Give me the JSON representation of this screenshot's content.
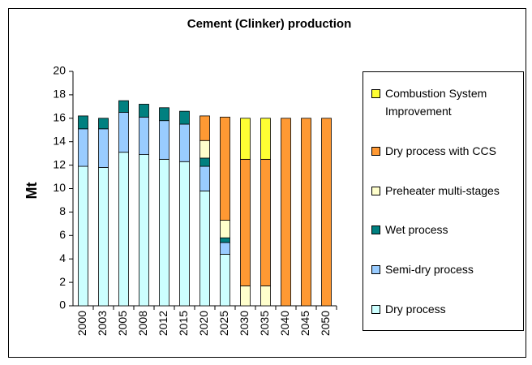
{
  "chart_data": {
    "type": "stacked_bar",
    "title": "Cement (Clinker) production",
    "y_label": "Mt",
    "categories": [
      "2000",
      "2003",
      "2005",
      "2008",
      "2012",
      "2015",
      "2020",
      "2025",
      "2030",
      "2035",
      "2040",
      "2045",
      "2050"
    ],
    "series": [
      {
        "name": "Dry process",
        "color": "#ccffff",
        "values": [
          11.9,
          11.8,
          13.1,
          12.9,
          12.5,
          12.3,
          9.8,
          4.4,
          0,
          0,
          0,
          0,
          0
        ]
      },
      {
        "name": "Semi-dry process",
        "color": "#99ccff",
        "values": [
          3.2,
          3.3,
          3.4,
          3.2,
          3.3,
          3.2,
          2.1,
          1.0,
          0,
          0,
          0,
          0,
          0
        ]
      },
      {
        "name": "Wet process",
        "color": "#008080",
        "values": [
          1.1,
          0.9,
          1.0,
          1.1,
          1.1,
          1.1,
          0.7,
          0.4,
          0,
          0,
          0,
          0,
          0
        ]
      },
      {
        "name": "Preheater multi-stages",
        "color": "#ffffcc",
        "values": [
          0,
          0,
          0,
          0,
          0,
          0,
          1.5,
          1.5,
          1.7,
          1.7,
          0,
          0,
          0
        ]
      },
      {
        "name": "Dry process with CCS",
        "color": "#ff9933",
        "values": [
          0,
          0,
          0,
          0,
          0,
          0,
          2.1,
          8.8,
          10.8,
          10.8,
          16.0,
          16.0,
          16.0
        ]
      },
      {
        "name": "Combustion System Improvement",
        "color": "#ffff33",
        "values": [
          0,
          0,
          0,
          0,
          0,
          0,
          0,
          0,
          3.5,
          3.5,
          0,
          0,
          0
        ]
      }
    ],
    "ylim": [
      0,
      20
    ],
    "yticks": [
      0,
      2,
      4,
      6,
      8,
      10,
      12,
      14,
      16,
      18,
      20
    ],
    "legend": "right"
  }
}
